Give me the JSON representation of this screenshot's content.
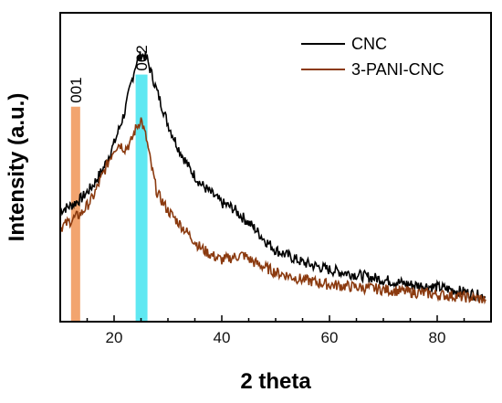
{
  "chart_data": {
    "type": "line",
    "xlabel": "2 theta",
    "ylabel": "Intensity (a.u.)",
    "xlim": [
      10,
      90
    ],
    "ylim": [
      0,
      1.25
    ],
    "x_ticks": [
      20,
      40,
      60,
      80
    ],
    "y_ticks_shown": false,
    "grid": false,
    "legend_position": "top-right",
    "highlight_bands": [
      {
        "label": "001",
        "x_from": 12.0,
        "x_to": 13.7,
        "color": "#f2a46f"
      },
      {
        "label": "002",
        "x_from": 24.0,
        "x_to": 26.2,
        "color": "#5fe8f2"
      }
    ],
    "series": [
      {
        "name": "CNC",
        "color": "#000000",
        "x": [
          10,
          12,
          14,
          16,
          18,
          20,
          22,
          23,
          24,
          25,
          26,
          27,
          28,
          30,
          32,
          34,
          36,
          38,
          40,
          42,
          44,
          46,
          48,
          50,
          55,
          60,
          65,
          70,
          75,
          80,
          85,
          89
        ],
        "y": [
          0.45,
          0.47,
          0.5,
          0.55,
          0.62,
          0.72,
          0.85,
          0.95,
          1.04,
          1.08,
          1.07,
          1.0,
          0.93,
          0.8,
          0.7,
          0.62,
          0.56,
          0.52,
          0.48,
          0.46,
          0.42,
          0.38,
          0.33,
          0.29,
          0.24,
          0.21,
          0.19,
          0.17,
          0.15,
          0.14,
          0.12,
          0.1
        ]
      },
      {
        "name": "3-PANI-CNC",
        "color": "#8b3a0f",
        "x": [
          10,
          12,
          14,
          16,
          18,
          20,
          21,
          22,
          23,
          24,
          25,
          26,
          27,
          28,
          30,
          32,
          34,
          36,
          38,
          40,
          42,
          44,
          46,
          48,
          50,
          55,
          60,
          65,
          70,
          75,
          80,
          85,
          89
        ],
        "y": [
          0.38,
          0.41,
          0.44,
          0.5,
          0.6,
          0.7,
          0.72,
          0.7,
          0.72,
          0.78,
          0.82,
          0.74,
          0.62,
          0.52,
          0.45,
          0.4,
          0.35,
          0.3,
          0.27,
          0.25,
          0.26,
          0.27,
          0.24,
          0.22,
          0.2,
          0.17,
          0.15,
          0.14,
          0.13,
          0.12,
          0.11,
          0.1,
          0.09
        ]
      }
    ]
  }
}
